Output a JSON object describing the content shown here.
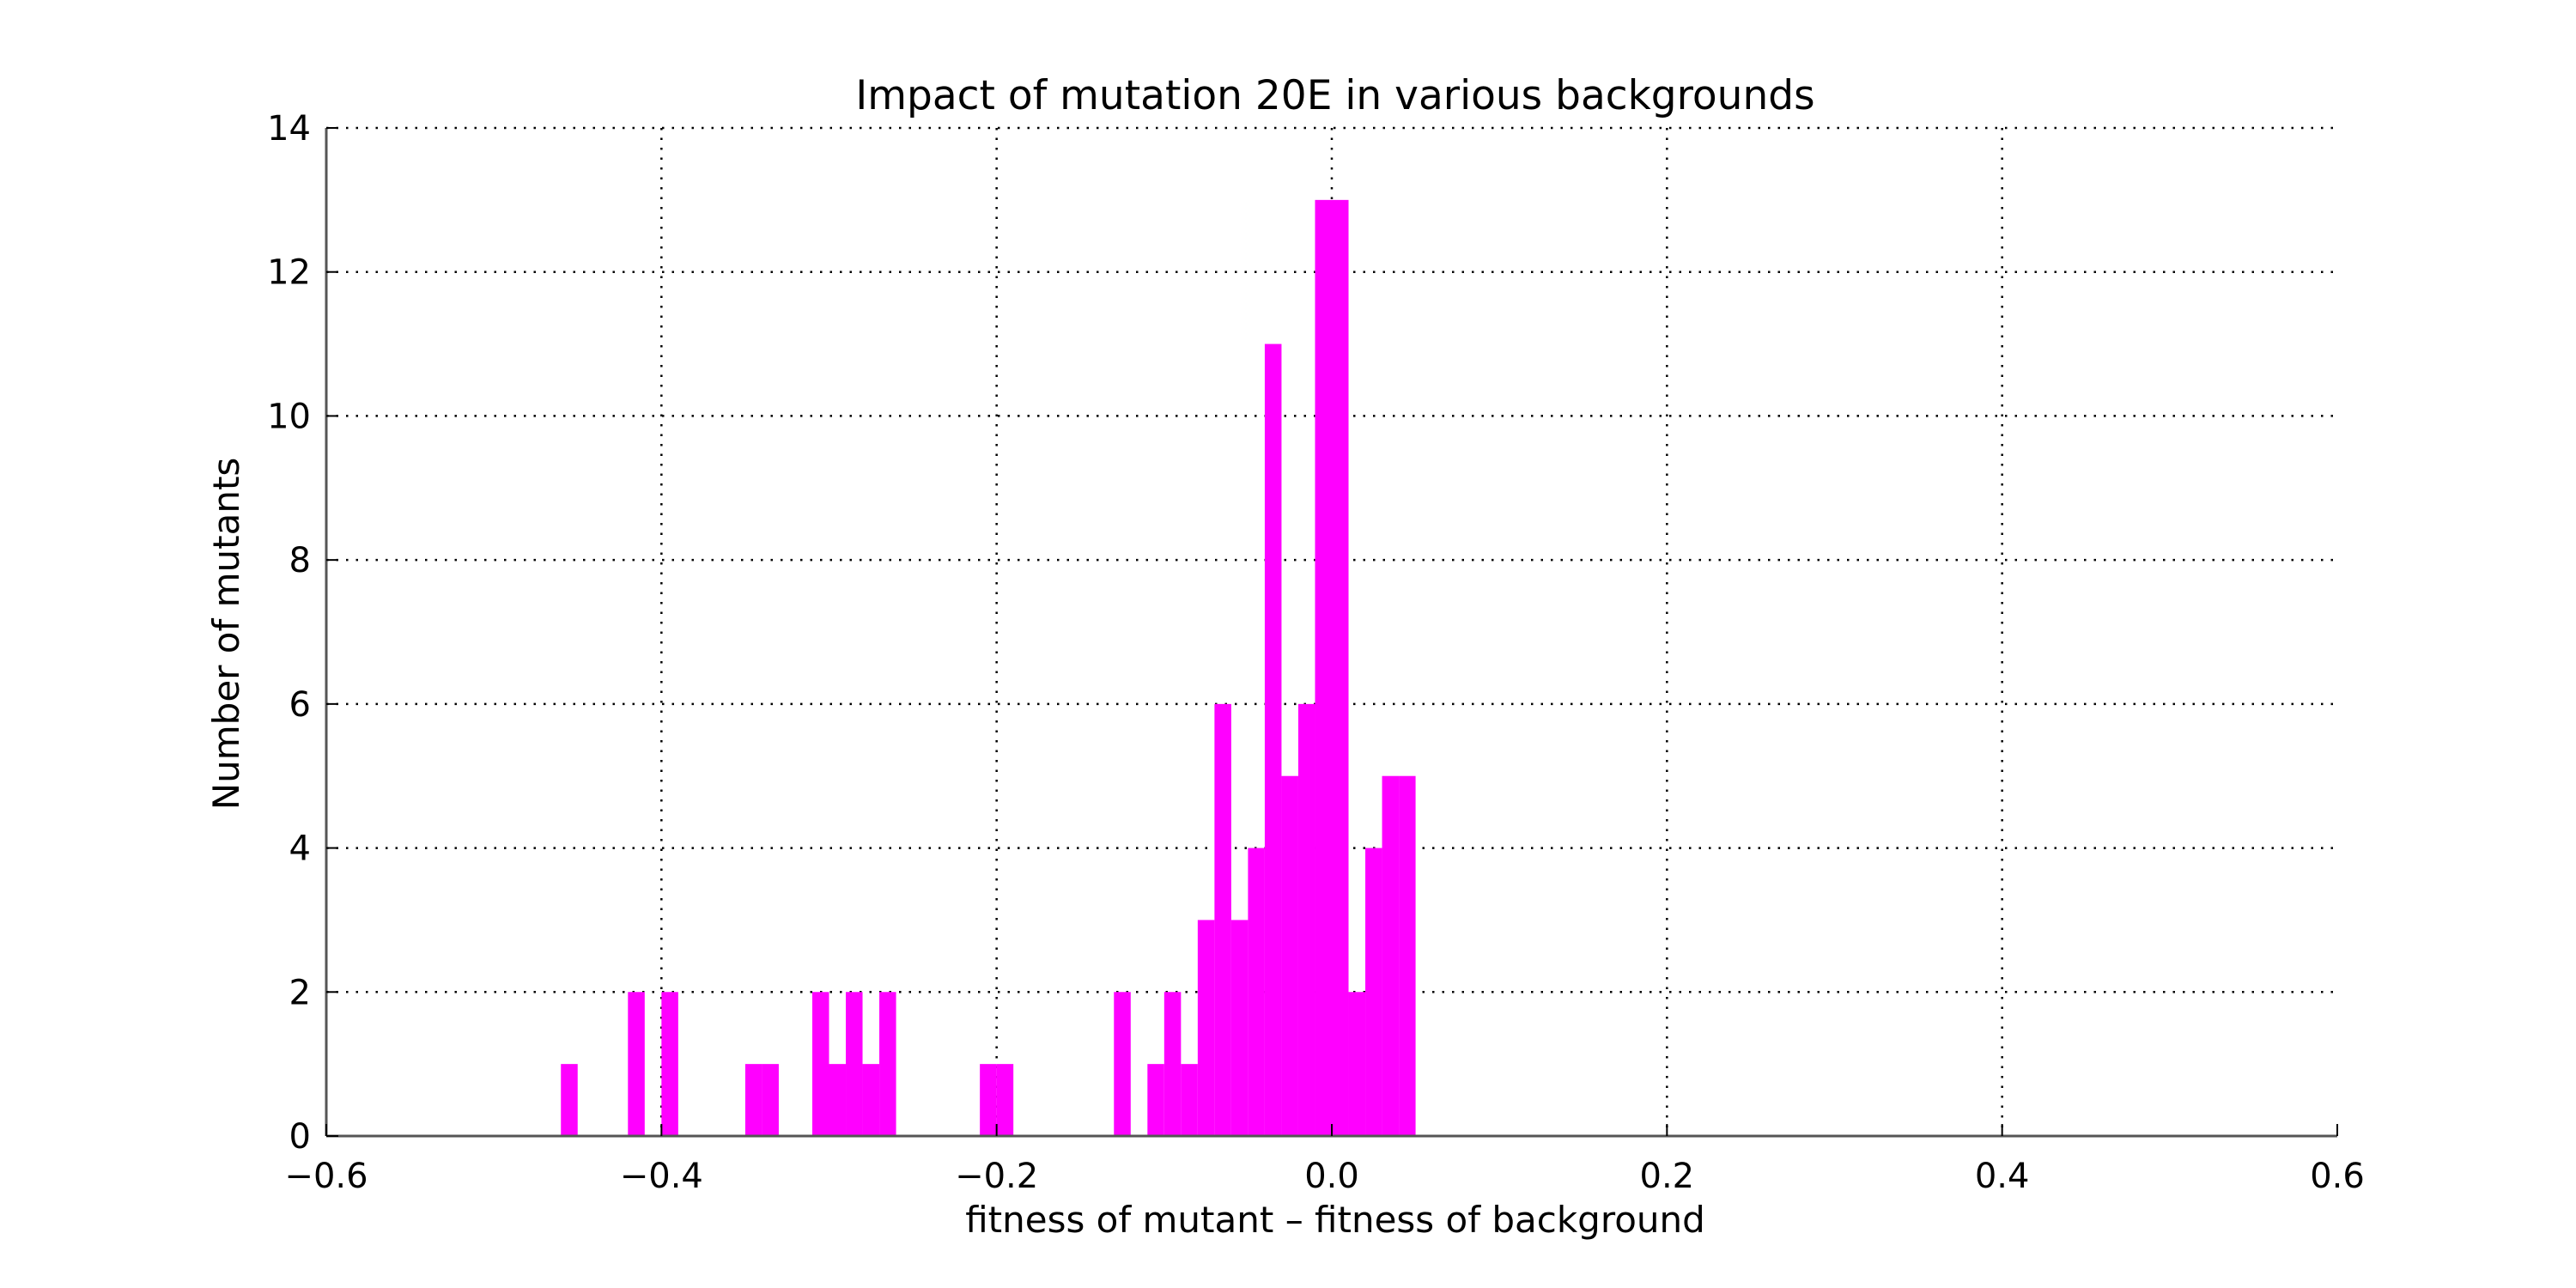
{
  "chart_data": {
    "type": "bar",
    "title": "Impact of mutation 20E in various backgrounds",
    "xlabel": "fitness of mutant  –  fitness of background",
    "ylabel": "Number of mutants",
    "xlim": [
      -0.6,
      0.6
    ],
    "ylim": [
      0,
      14
    ],
    "bin_width": 0.01,
    "xticks": [
      -0.6,
      -0.4,
      -0.2,
      0.0,
      0.2,
      0.4,
      0.6
    ],
    "xtick_labels": [
      "−0.6",
      "−0.4",
      "−0.2",
      "0.0",
      "0.2",
      "0.4",
      "0.6"
    ],
    "yticks": [
      0,
      2,
      4,
      6,
      8,
      10,
      12,
      14
    ],
    "ytick_labels": [
      "0",
      "2",
      "4",
      "6",
      "8",
      "10",
      "12",
      "14"
    ],
    "grid": true,
    "bar_color": "#ff00ff",
    "bins": [
      {
        "x": -0.46,
        "count": 1
      },
      {
        "x": -0.42,
        "count": 2
      },
      {
        "x": -0.4,
        "count": 2
      },
      {
        "x": -0.35,
        "count": 1
      },
      {
        "x": -0.34,
        "count": 1
      },
      {
        "x": -0.31,
        "count": 2
      },
      {
        "x": -0.3,
        "count": 1
      },
      {
        "x": -0.29,
        "count": 2
      },
      {
        "x": -0.28,
        "count": 1
      },
      {
        "x": -0.27,
        "count": 2
      },
      {
        "x": -0.21,
        "count": 1
      },
      {
        "x": -0.2,
        "count": 1
      },
      {
        "x": -0.13,
        "count": 2
      },
      {
        "x": -0.11,
        "count": 1
      },
      {
        "x": -0.1,
        "count": 2
      },
      {
        "x": -0.09,
        "count": 1
      },
      {
        "x": -0.08,
        "count": 3
      },
      {
        "x": -0.07,
        "count": 6
      },
      {
        "x": -0.06,
        "count": 3
      },
      {
        "x": -0.05,
        "count": 4
      },
      {
        "x": -0.04,
        "count": 11
      },
      {
        "x": -0.03,
        "count": 5
      },
      {
        "x": -0.02,
        "count": 6
      },
      {
        "x": -0.01,
        "count": 13
      },
      {
        "x": 0.0,
        "count": 13
      },
      {
        "x": 0.01,
        "count": 2
      },
      {
        "x": 0.02,
        "count": 4
      },
      {
        "x": 0.03,
        "count": 5
      },
      {
        "x": 0.04,
        "count": 5
      }
    ]
  }
}
